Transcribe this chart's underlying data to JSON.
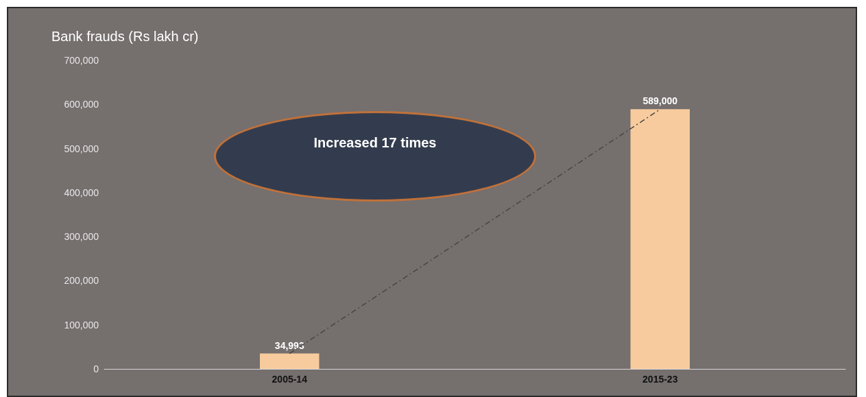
{
  "chart_data": {
    "type": "bar",
    "title": "Bank frauds (Rs lakh cr)",
    "categories": [
      "2005-14",
      "2015-23"
    ],
    "series": [
      {
        "color": "#f7cb9e",
        "values": [
          34993,
          589000
        ],
        "value_labels": [
          "34,993",
          "589,000"
        ]
      },
      {
        "type": "line",
        "color": "#4a4544",
        "values": [
          34993,
          589000
        ],
        "line_style": "dashed",
        "marker": "none"
      }
    ],
    "ylim": [
      0,
      700000
    ],
    "yticks": [
      {
        "value": 0,
        "label": "0"
      },
      {
        "value": 100000,
        "label": "100,000"
      },
      {
        "value": 200000,
        "label": "200,000"
      },
      {
        "value": 300000,
        "label": "300,000"
      },
      {
        "value": 400000,
        "label": "400,000"
      },
      {
        "value": 500000,
        "label": "500,000"
      },
      {
        "value": 600000,
        "label": "600,000"
      },
      {
        "value": 700000,
        "label": "700,000"
      }
    ],
    "annotations": [
      "Increased 17 times"
    ],
    "grid": false
  }
}
